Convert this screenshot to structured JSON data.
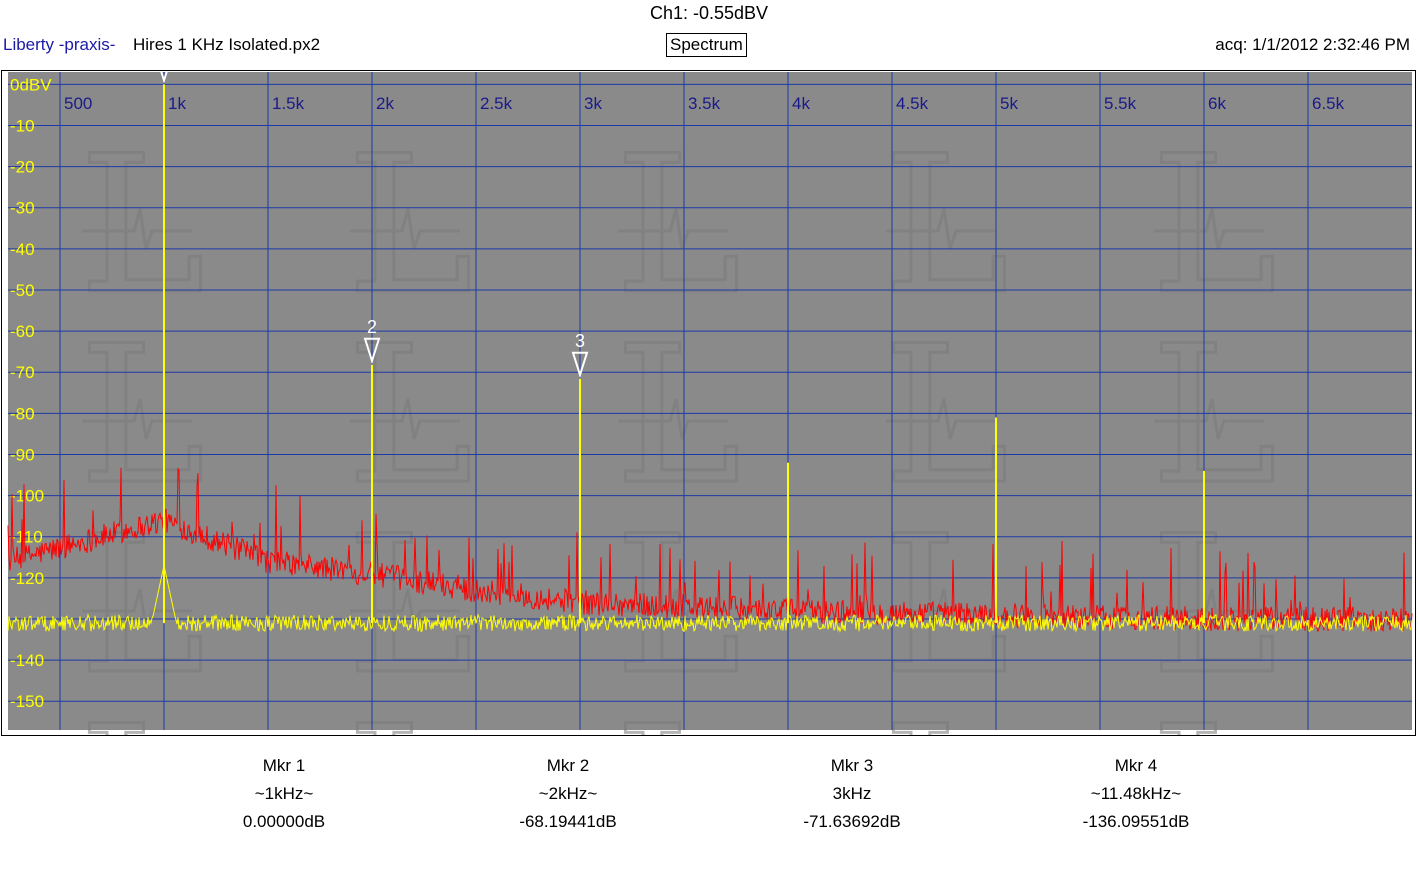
{
  "header": {
    "channel_readout": "Ch1: -0.55dBV",
    "brand": "Liberty -praxis-",
    "filename": "Hires 1 KHz Isolated.px2",
    "mode": "Spectrum",
    "acquired": "acq: 1/1/2012 2:32:46 PM"
  },
  "colors": {
    "plot_background": "#8a8a8a",
    "grid": "#1c3aa8",
    "axis_text": "#ffff00",
    "x_tick_text": "#1a1a8a",
    "trace_primary": "#ffff00",
    "trace_secondary": "#ff0000",
    "watermark": "#7a7a7a"
  },
  "chart_data": {
    "type": "line",
    "x_ticks": [
      {
        "value": 500,
        "label": "500"
      },
      {
        "value": 1000,
        "label": "1k"
      },
      {
        "value": 1500,
        "label": "1.5k"
      },
      {
        "value": 2000,
        "label": "2k"
      },
      {
        "value": 2500,
        "label": "2.5k"
      },
      {
        "value": 3000,
        "label": "3k"
      },
      {
        "value": 3500,
        "label": "3.5k"
      },
      {
        "value": 4000,
        "label": "4k"
      },
      {
        "value": 4500,
        "label": "4.5k"
      },
      {
        "value": 5000,
        "label": "5k"
      },
      {
        "value": 5500,
        "label": "5.5k"
      },
      {
        "value": 6000,
        "label": "6k"
      },
      {
        "value": 6500,
        "label": "6.5k"
      }
    ],
    "y_ticks": [
      {
        "value": 0,
        "label": "0dBV"
      },
      {
        "value": -10,
        "label": "-10"
      },
      {
        "value": -20,
        "label": "-20"
      },
      {
        "value": -30,
        "label": "-30"
      },
      {
        "value": -40,
        "label": "-40"
      },
      {
        "value": -50,
        "label": "-50"
      },
      {
        "value": -60,
        "label": "-60"
      },
      {
        "value": -70,
        "label": "-70"
      },
      {
        "value": -80,
        "label": "-80"
      },
      {
        "value": -90,
        "label": "-90"
      },
      {
        "value": -100,
        "label": "-100"
      },
      {
        "value": -110,
        "label": "-110"
      },
      {
        "value": -120,
        "label": "-120"
      },
      {
        "value": -130,
        "label": ""
      },
      {
        "value": -140,
        "label": "-140"
      },
      {
        "value": -150,
        "label": "-150"
      }
    ],
    "xlim": [
      250,
      7000
    ],
    "ylim": [
      -157,
      3
    ],
    "grid": true,
    "series": [
      {
        "color": "#ffff00",
        "noise_floor_db": -131,
        "peaks": [
          {
            "x": 1000,
            "y": 0
          },
          {
            "x": 2000,
            "y": -68.2
          },
          {
            "x": 3000,
            "y": -71.6
          },
          {
            "x": 4000,
            "y": -92
          },
          {
            "x": 5000,
            "y": -81
          },
          {
            "x": 6000,
            "y": -94
          }
        ]
      },
      {
        "color": "#ff0000",
        "envelope": [
          {
            "x": 250,
            "y": -116
          },
          {
            "x": 1000,
            "y": -106
          },
          {
            "x": 1500,
            "y": -116
          },
          {
            "x": 2000,
            "y": -119
          },
          {
            "x": 2500,
            "y": -123
          },
          {
            "x": 3000,
            "y": -126
          },
          {
            "x": 3500,
            "y": -127
          },
          {
            "x": 4000,
            "y": -128
          },
          {
            "x": 5000,
            "y": -129
          },
          {
            "x": 6000,
            "y": -130
          },
          {
            "x": 7000,
            "y": -130
          }
        ]
      }
    ],
    "markers_on_plot": [
      {
        "label": "",
        "x": 1000,
        "y": 0
      },
      {
        "label": "2",
        "x": 2000,
        "y": -68.2
      },
      {
        "label": "3",
        "x": 3000,
        "y": -71.6
      }
    ]
  },
  "markers": [
    {
      "name": "Mkr 1",
      "freq": "~1kHz~",
      "level": "0.00000dB"
    },
    {
      "name": "Mkr 2",
      "freq": "~2kHz~",
      "level": "-68.19441dB"
    },
    {
      "name": "Mkr 3",
      "freq": "3kHz",
      "level": "-71.63692dB"
    },
    {
      "name": "Mkr 4",
      "freq": "~11.48kHz~",
      "level": "-136.09551dB"
    }
  ]
}
